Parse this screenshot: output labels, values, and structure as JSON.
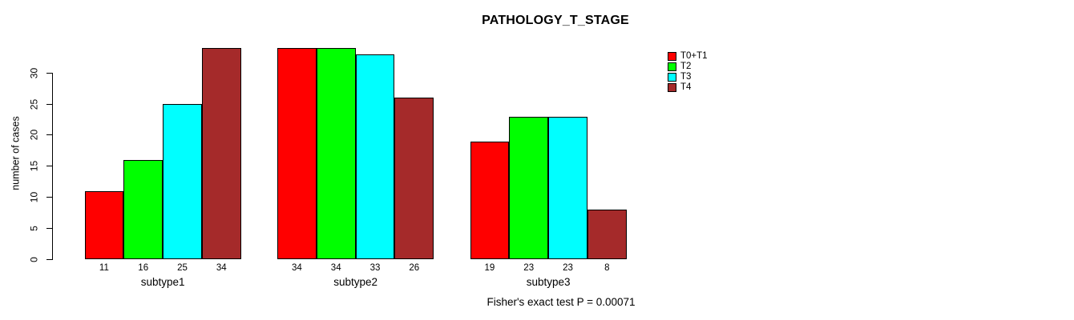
{
  "chart_data": {
    "type": "bar",
    "grouped": true,
    "title": "PATHOLOGY_T_STAGE",
    "ylabel": "number of cases",
    "xlabel": "",
    "categories": [
      "subtype1",
      "subtype2",
      "subtype3"
    ],
    "series": [
      {
        "name": "T0+T1",
        "color": "#ff0000",
        "values": [
          11,
          34,
          19
        ]
      },
      {
        "name": "T2",
        "color": "#00ff00",
        "values": [
          16,
          34,
          23
        ]
      },
      {
        "name": "T3",
        "color": "#00ffff",
        "values": [
          25,
          33,
          23
        ]
      },
      {
        "name": "T4",
        "color": "#a52a2a",
        "values": [
          34,
          26,
          8
        ]
      }
    ],
    "bar_value_labels_shown": true,
    "yticks": [
      0,
      5,
      10,
      15,
      20,
      25,
      30
    ],
    "ylim": [
      0,
      34
    ],
    "grid": false,
    "legend_position": "right-outside",
    "annotation": "Fisher's exact test P = 0.00071",
    "bar_border_color": "#000000",
    "axis_color": "#000000",
    "text_color": "#000000",
    "background": "#ffffff"
  }
}
